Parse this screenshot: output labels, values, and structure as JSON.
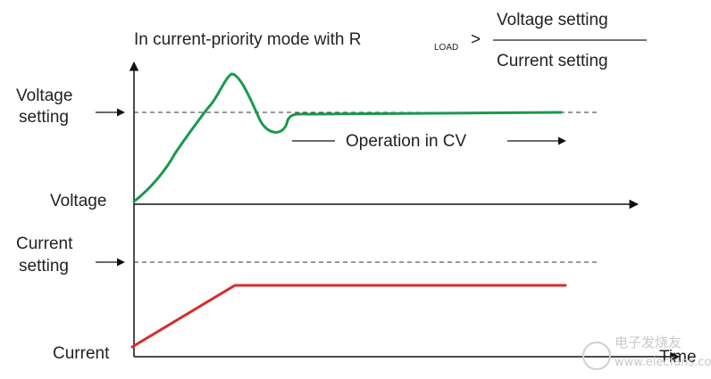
{
  "header": {
    "prefix": "In current-priority mode with R",
    "subscript": "LOAD",
    "comparator": ">",
    "numerator": "Voltage setting",
    "denominator": "Current setting"
  },
  "voltage_panel": {
    "setting_label_line1": "Voltage",
    "setting_label_line2": "setting",
    "axis_label": "Voltage",
    "annotation": "Operation in CV"
  },
  "current_panel": {
    "setting_label_line1": "Current",
    "setting_label_line2": "setting",
    "axis_label": "Current"
  },
  "time_label": "Time",
  "watermark": {
    "line1": "电子发烧友",
    "line2": "www.elecfans.com"
  },
  "colors": {
    "voltage_curve": "#1a9a4c",
    "current_curve": "#d92b2b",
    "axes": "#111111",
    "dashed": "#333333"
  }
}
